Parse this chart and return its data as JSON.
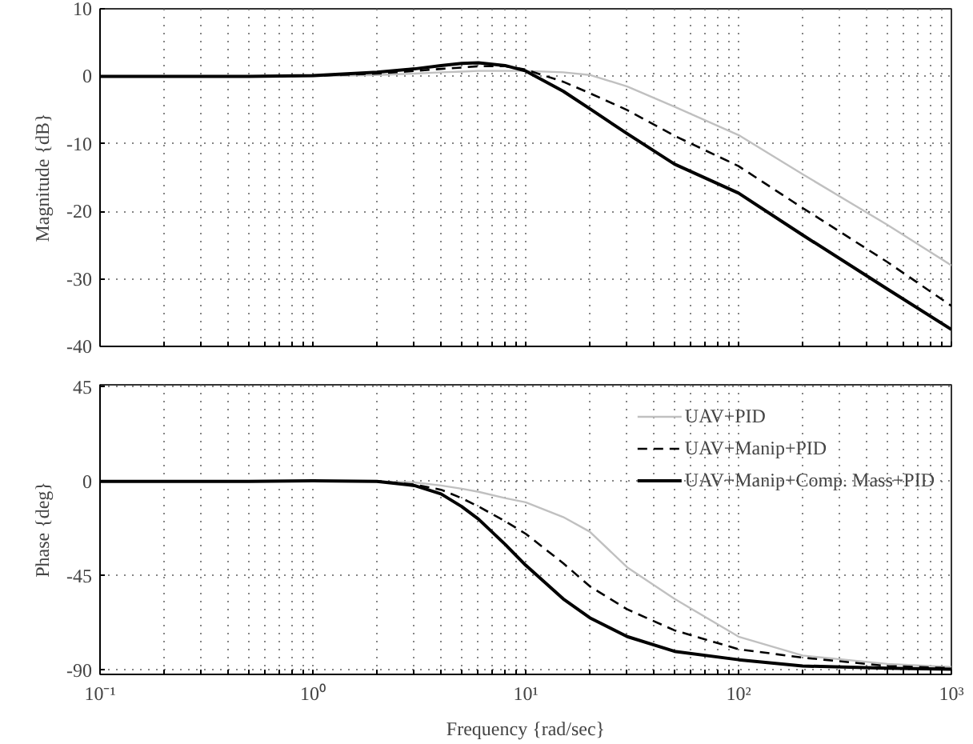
{
  "chart_data": [
    {
      "type": "line",
      "ylabel": "Magnitude {dB}",
      "log": "x",
      "grid": true,
      "legend": false,
      "tick_labels": "y",
      "x": [
        0.1,
        0.5,
        1,
        2,
        3,
        4,
        5,
        6,
        8,
        10,
        15,
        20,
        30,
        50,
        100,
        200,
        500,
        1000
      ],
      "xlim": [
        0.1,
        1000
      ],
      "xticks": [
        {
          "value": 0.1,
          "label": null
        },
        {
          "value": 0.2,
          "label": null
        },
        {
          "value": 0.3,
          "label": null
        },
        {
          "value": 0.4,
          "label": null
        },
        {
          "value": 0.5,
          "label": null
        },
        {
          "value": 0.6,
          "label": null
        },
        {
          "value": 0.7,
          "label": null
        },
        {
          "value": 0.8,
          "label": null
        },
        {
          "value": 0.9,
          "label": null
        },
        {
          "value": 1,
          "label": null
        },
        {
          "value": 2,
          "label": null
        },
        {
          "value": 3,
          "label": null
        },
        {
          "value": 4,
          "label": null
        },
        {
          "value": 5,
          "label": null
        },
        {
          "value": 6,
          "label": null
        },
        {
          "value": 7,
          "label": null
        },
        {
          "value": 8,
          "label": null
        },
        {
          "value": 9,
          "label": null
        },
        {
          "value": 10,
          "label": null
        },
        {
          "value": 20,
          "label": null
        },
        {
          "value": 30,
          "label": null
        },
        {
          "value": 40,
          "label": null
        },
        {
          "value": 50,
          "label": null
        },
        {
          "value": 60,
          "label": null
        },
        {
          "value": 70,
          "label": null
        },
        {
          "value": 80,
          "label": null
        },
        {
          "value": 90,
          "label": null
        },
        {
          "value": 100,
          "label": null
        },
        {
          "value": 200,
          "label": null
        },
        {
          "value": 300,
          "label": null
        },
        {
          "value": 400,
          "label": null
        },
        {
          "value": 500,
          "label": null
        },
        {
          "value": 600,
          "label": null
        },
        {
          "value": 700,
          "label": null
        },
        {
          "value": 800,
          "label": null
        },
        {
          "value": 900,
          "label": null
        },
        {
          "value": 1000,
          "label": null
        }
      ],
      "ylim": [
        -40,
        10
      ],
      "yticks": [
        -40,
        -30,
        -20,
        -10,
        0,
        10
      ],
      "series": [
        {
          "color": "#c0c0c0",
          "line_style": "solid",
          "values": [
            0,
            0,
            0,
            0.2,
            0.4,
            0.6,
            0.7,
            0.8,
            0.8,
            0.8,
            0.6,
            0.2,
            -1.5,
            -4.5,
            -8.7,
            -14.5,
            -22,
            -28
          ]
        },
        {
          "color": "#000000",
          "line_style": "dashed",
          "values": [
            0,
            0,
            0.1,
            0.4,
            0.8,
            1.1,
            1.3,
            1.5,
            1.5,
            1,
            -0.8,
            -2.5,
            -5,
            -8.8,
            -13.3,
            -19.5,
            -27.5,
            -34
          ]
        },
        {
          "color": "#000000",
          "line_style": "solid",
          "values": [
            0,
            0,
            0.1,
            0.6,
            1.1,
            1.6,
            1.9,
            2,
            1.6,
            0.8,
            -2.2,
            -4.8,
            -8.5,
            -13,
            -17.3,
            -23.5,
            -31.5,
            -37.5
          ]
        }
      ]
    },
    {
      "type": "line",
      "xlabel": "Frequency {rad/sec}",
      "ylabel": "Phase {deg}",
      "log": "x",
      "grid": true,
      "legend": "top right",
      "x": [
        0.1,
        0.5,
        1,
        2,
        3,
        4,
        5,
        6,
        8,
        10,
        15,
        20,
        30,
        50,
        100,
        200,
        500,
        1000
      ],
      "xlim": [
        0.1,
        1000
      ],
      "xticks": [
        {
          "value": 0.1,
          "label": "10⁻¹"
        },
        {
          "value": 0.2,
          "label": null
        },
        {
          "value": 0.3,
          "label": null
        },
        {
          "value": 0.4,
          "label": null
        },
        {
          "value": 0.5,
          "label": null
        },
        {
          "value": 0.6,
          "label": null
        },
        {
          "value": 0.7,
          "label": null
        },
        {
          "value": 0.8,
          "label": null
        },
        {
          "value": 0.9,
          "label": null
        },
        {
          "value": 1,
          "label": "10⁰"
        },
        {
          "value": 2,
          "label": null
        },
        {
          "value": 3,
          "label": null
        },
        {
          "value": 4,
          "label": null
        },
        {
          "value": 5,
          "label": null
        },
        {
          "value": 6,
          "label": null
        },
        {
          "value": 7,
          "label": null
        },
        {
          "value": 8,
          "label": null
        },
        {
          "value": 9,
          "label": null
        },
        {
          "value": 10,
          "label": "10¹"
        },
        {
          "value": 20,
          "label": null
        },
        {
          "value": 30,
          "label": null
        },
        {
          "value": 40,
          "label": null
        },
        {
          "value": 50,
          "label": null
        },
        {
          "value": 60,
          "label": null
        },
        {
          "value": 70,
          "label": null
        },
        {
          "value": 80,
          "label": null
        },
        {
          "value": 90,
          "label": null
        },
        {
          "value": 100,
          "label": "10²"
        },
        {
          "value": 200,
          "label": null
        },
        {
          "value": 300,
          "label": null
        },
        {
          "value": 400,
          "label": null
        },
        {
          "value": 500,
          "label": null
        },
        {
          "value": 600,
          "label": null
        },
        {
          "value": 700,
          "label": null
        },
        {
          "value": 800,
          "label": null
        },
        {
          "value": 900,
          "label": null
        },
        {
          "value": 1000,
          "label": "10³"
        }
      ],
      "ylim": [
        -92,
        46
      ],
      "yticks": [
        -90,
        -45,
        0,
        45
      ],
      "series": [
        {
          "name": "UAV+PID",
          "color": "#c0c0c0",
          "line_style": "solid",
          "values": [
            0,
            0,
            0.1,
            0,
            -0.5,
            -2,
            -3.5,
            -5,
            -8,
            -10,
            -17,
            -24,
            -41,
            -56,
            -74,
            -83,
            -87,
            -88.5
          ]
        },
        {
          "name": "UAV+Manip+PID",
          "color": "#000000",
          "line_style": "dashed",
          "values": [
            0,
            0,
            0.2,
            0,
            -1.5,
            -4,
            -8,
            -12,
            -19,
            -25,
            -39,
            -50,
            -61,
            -71,
            -80,
            -84,
            -88,
            -89
          ]
        },
        {
          "name": "UAV+Manip+Comp. Mass+PID",
          "color": "#000000",
          "line_style": "solid",
          "values": [
            0,
            0,
            0.3,
            0,
            -2,
            -6,
            -12,
            -18,
            -30,
            -40,
            -56,
            -65,
            -74,
            -81,
            -85,
            -88,
            -89,
            -89.5
          ]
        }
      ]
    }
  ]
}
